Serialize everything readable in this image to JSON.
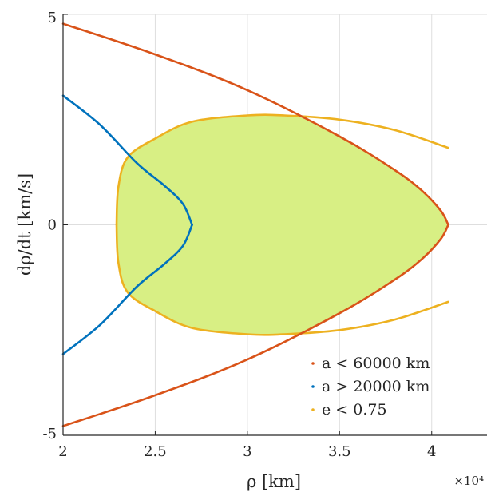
{
  "chart_data": {
    "type": "line",
    "xlabel": "ρ [km]",
    "ylabel": "dρ/dt [km/s]",
    "x_multiplier": "×10⁴",
    "xlim": [
      2.0,
      4.3
    ],
    "ylim": [
      -5,
      5
    ],
    "x_ticks": [
      "2",
      "2.5",
      "3",
      "3.5",
      "4"
    ],
    "y_ticks": [
      "5",
      "0",
      "-5"
    ],
    "x_tick_values": [
      2.0,
      2.5,
      3.0,
      3.5,
      4.0
    ],
    "y_tick_values": [
      5,
      0,
      -5
    ],
    "grid": true,
    "legend_position": "bottom-right",
    "feasible_region_color": "#d8ef84",
    "series": [
      {
        "name": "a < 60000 km",
        "color": "#d95319",
        "x": [
          2.0,
          2.5,
          3.0,
          3.5,
          3.8,
          3.95,
          4.05,
          4.09,
          4.09,
          4.05,
          3.95,
          3.8,
          3.5,
          3.0,
          2.5,
          2.0
        ],
        "y": [
          4.78,
          4.05,
          3.2,
          2.1,
          1.3,
          0.8,
          0.33,
          0.0,
          0.0,
          -0.33,
          -0.8,
          -1.3,
          -2.1,
          -3.2,
          -4.05,
          -4.78
        ]
      },
      {
        "name": "a > 20000 km",
        "color": "#0072bd",
        "x": [
          2.0,
          2.2,
          2.4,
          2.55,
          2.65,
          2.7,
          2.7,
          2.65,
          2.55,
          2.4,
          2.2,
          2.0
        ],
        "y": [
          3.07,
          2.38,
          1.47,
          0.93,
          0.5,
          0.0,
          0.0,
          -0.5,
          -0.93,
          -1.47,
          -2.38,
          -3.07
        ]
      },
      {
        "name": "e < 0.75",
        "color": "#edb120",
        "x": [
          2.29,
          2.3,
          2.35,
          2.5,
          2.7,
          3.0,
          3.2,
          3.5,
          3.8,
          4.09,
          4.09,
          3.8,
          3.5,
          3.2,
          3.0,
          2.7,
          2.5,
          2.35,
          2.3,
          2.29
        ],
        "y": [
          0.0,
          0.9,
          1.6,
          2.05,
          2.45,
          2.6,
          2.6,
          2.5,
          2.25,
          1.83,
          -1.83,
          -2.25,
          -2.5,
          -2.6,
          -2.6,
          -2.45,
          -2.05,
          -1.6,
          -0.9,
          0.0
        ]
      }
    ]
  }
}
